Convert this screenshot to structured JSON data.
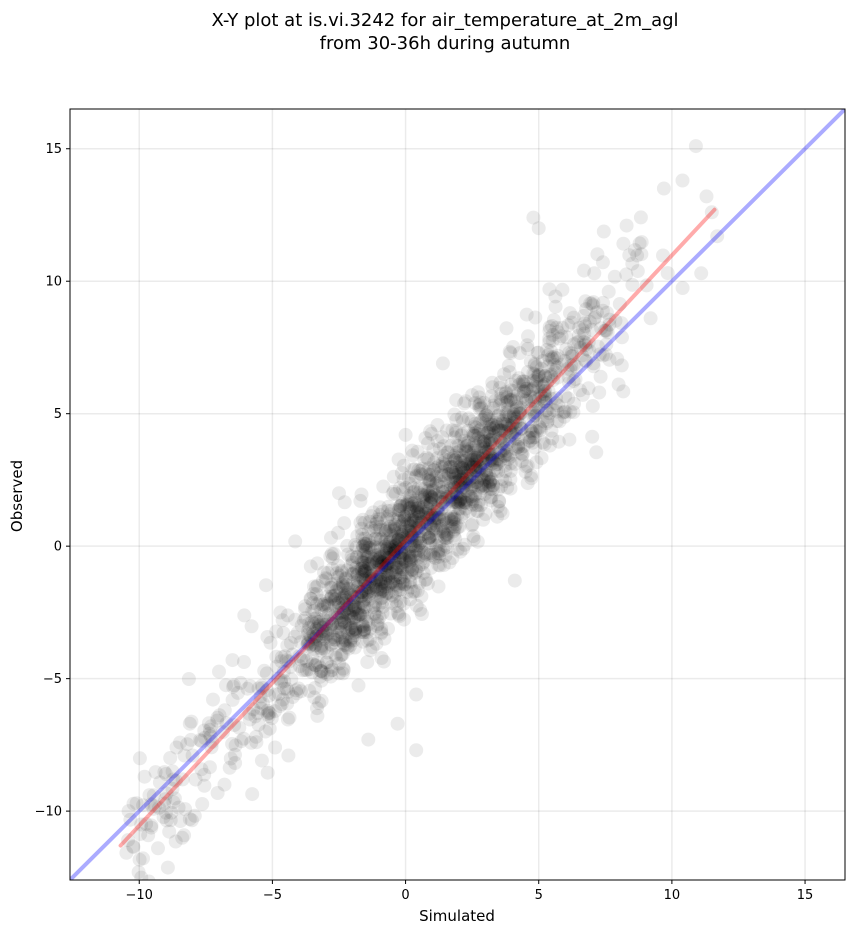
{
  "chart_data": {
    "type": "scatter",
    "title": "X-Y plot at is.vi.3242 for air_temperature_at_2m_agl",
    "subtitle": "from 30-36h during autumn",
    "xlabel": "Simulated",
    "ylabel": "Observed",
    "xlim": [
      -12.6,
      16.5
    ],
    "ylim": [
      -12.6,
      16.5
    ],
    "xticks": [
      -10,
      -5,
      0,
      5,
      10,
      15
    ],
    "yticks": [
      -10,
      -5,
      0,
      5,
      10,
      15
    ],
    "xtick_labels": [
      "−10",
      "−5",
      "0",
      "5",
      "10",
      "15"
    ],
    "ytick_labels": [
      "−10",
      "−5",
      "0",
      "5",
      "10",
      "15"
    ],
    "grid": true,
    "points": {
      "color": "#000000",
      "approx_count": 2000,
      "sample_xy": [
        [
          -10.4,
          -10.0
        ],
        [
          -10.1,
          -9.7
        ],
        [
          -9.8,
          -8.7
        ],
        [
          -9.0,
          -8.6
        ],
        [
          -8.6,
          -7.6
        ],
        [
          -8.3,
          -7.9
        ],
        [
          -8.1,
          -6.7
        ],
        [
          -8.1,
          -10.3
        ],
        [
          -7.3,
          -6.8
        ],
        [
          -6.8,
          -9.0
        ],
        [
          -6.5,
          -4.3
        ],
        [
          -5.6,
          -7.4
        ],
        [
          -5.1,
          -6.3
        ],
        [
          -4.9,
          -7.6
        ],
        [
          -4.4,
          -7.9
        ],
        [
          -3.9,
          -3.0
        ],
        [
          -3.0,
          -1.2
        ],
        [
          -2.5,
          2.0
        ],
        [
          -1.6,
          1.0
        ],
        [
          -1.4,
          -7.3
        ],
        [
          -0.3,
          -6.7
        ],
        [
          0.4,
          -7.7
        ],
        [
          0.0,
          4.2
        ],
        [
          0.4,
          -5.6
        ],
        [
          1.4,
          6.9
        ],
        [
          2.5,
          5.7
        ],
        [
          4.1,
          -1.3
        ],
        [
          4.8,
          12.4
        ],
        [
          5.0,
          12.0
        ],
        [
          5.4,
          9.7
        ],
        [
          6.7,
          10.4
        ],
        [
          8.3,
          12.1
        ],
        [
          9.7,
          13.5
        ],
        [
          10.4,
          13.8
        ],
        [
          10.9,
          15.1
        ],
        [
          11.3,
          13.2
        ],
        [
          11.1,
          10.3
        ],
        [
          11.5,
          12.6
        ],
        [
          9.2,
          8.6
        ],
        [
          8.0,
          6.1
        ]
      ]
    },
    "series": [
      {
        "color": "#0000ff",
        "x": [
          -12.6,
          16.5
        ],
        "y": [
          -12.6,
          16.5
        ]
      },
      {
        "color": "#ff0000",
        "x": [
          -10.7,
          11.6
        ],
        "y": [
          -11.3,
          12.7
        ]
      }
    ]
  }
}
